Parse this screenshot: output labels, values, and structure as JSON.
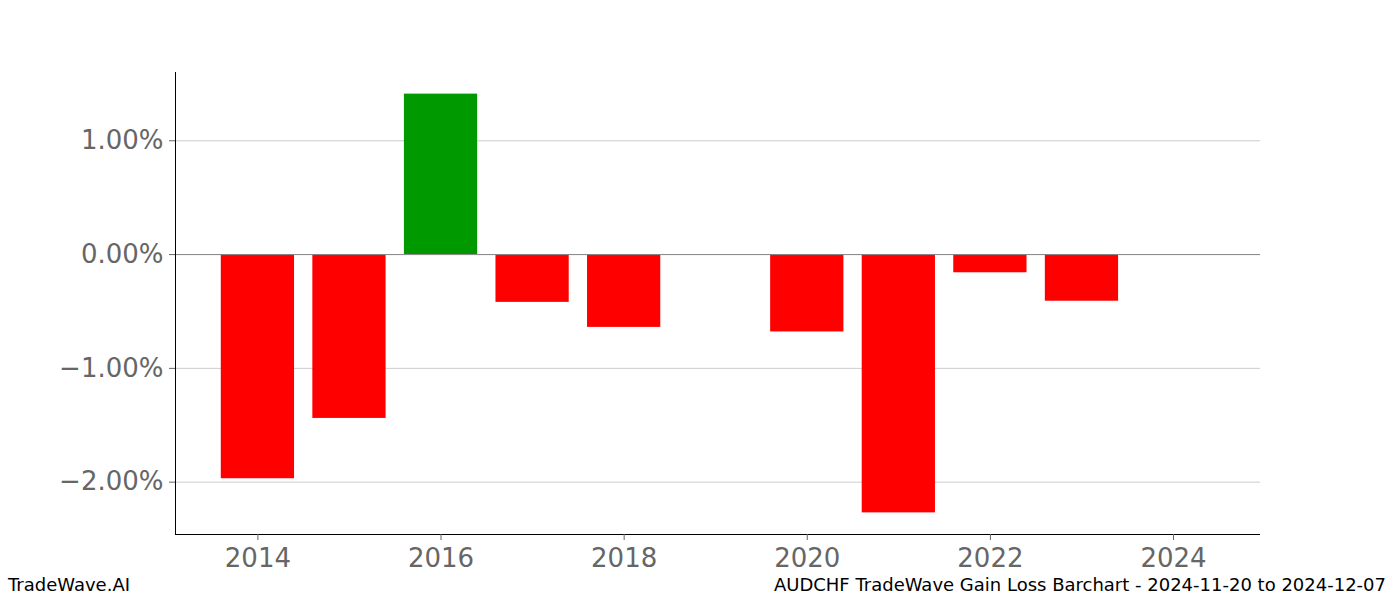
{
  "chart_data": {
    "type": "bar",
    "caption": "AUDCHF TradeWave Gain Loss Barchart - 2024-11-20 to 2024-12-07",
    "source": "TradeWave.AI",
    "x": [
      2014,
      2015,
      2016,
      2017,
      2018,
      2019,
      2020,
      2021,
      2022,
      2023,
      2024
    ],
    "values": [
      -1.97,
      -1.44,
      1.41,
      -0.42,
      -0.64,
      null,
      -0.68,
      -2.27,
      -0.16,
      -0.41,
      null
    ],
    "colors": [
      "#ff0000",
      "#ff0000",
      "#009900",
      "#ff0000",
      "#ff0000",
      null,
      "#ff0000",
      "#ff0000",
      "#ff0000",
      "#ff0000",
      null
    ],
    "xlim": [
      2013.1,
      2024.95
    ],
    "xticks": [
      2014,
      2016,
      2018,
      2020,
      2022,
      2024
    ],
    "ylim": [
      -2.46,
      1.6
    ],
    "yticks": [
      {
        "value": -2,
        "label": "−2.00%"
      },
      {
        "value": -1,
        "label": "−1.00%"
      },
      {
        "value": 0,
        "label": "0.00%"
      },
      {
        "value": 1,
        "label": "1.00%"
      }
    ],
    "grid": true
  }
}
